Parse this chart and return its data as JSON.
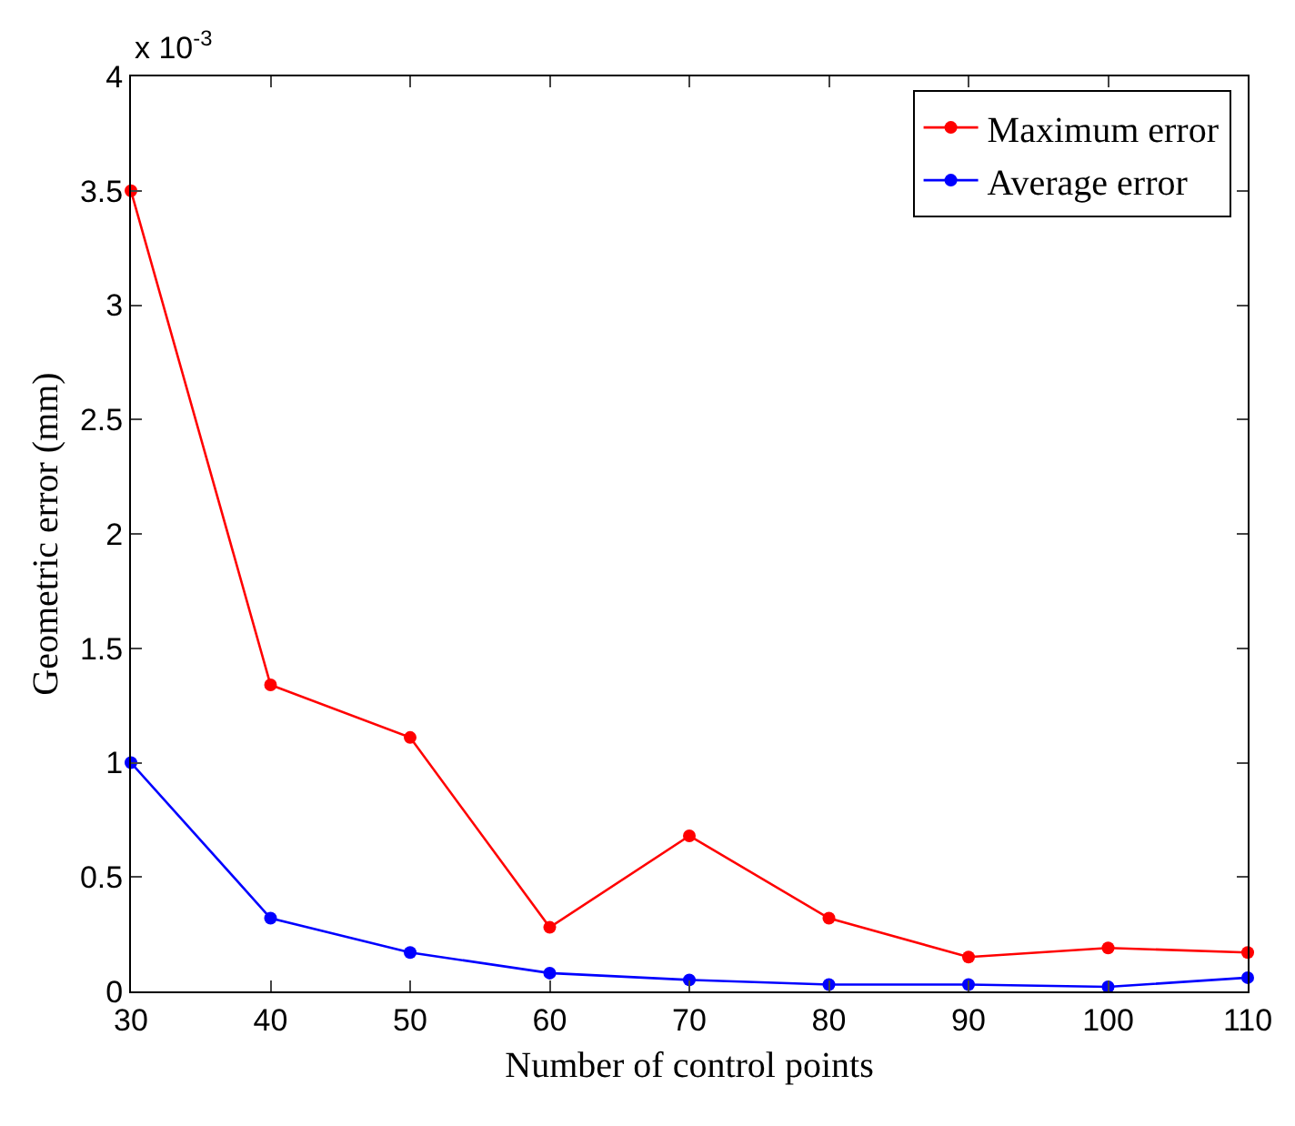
{
  "chart_data": {
    "type": "line",
    "xlabel": "Number of control points",
    "ylabel": "Geometric error (mm)",
    "annotations": [
      "x 10$^{-3}$"
    ],
    "x": [
      30,
      40,
      50,
      60,
      70,
      80,
      90,
      100,
      110
    ],
    "series": [
      {
        "name": "Maximum error",
        "color": "#ff0000",
        "values": [
          3.5,
          1.34,
          1.11,
          0.28,
          0.68,
          0.32,
          0.15,
          0.19,
          0.17
        ]
      },
      {
        "name": "Average error",
        "color": "#0000ff",
        "values": [
          1.0,
          0.32,
          0.17,
          0.08,
          0.05,
          0.03,
          0.03,
          0.02,
          0.06
        ]
      }
    ],
    "xlim": [
      30,
      110
    ],
    "xticks": [
      30,
      40,
      50,
      60,
      70,
      80,
      90,
      100,
      110
    ],
    "ylim": [
      0,
      4
    ],
    "yticks": [
      0,
      0.5,
      1,
      1.5,
      2,
      2.5,
      3,
      3.5,
      4
    ],
    "grid": false,
    "legend": "top right",
    "marker": "circle",
    "line_style": "solid"
  }
}
